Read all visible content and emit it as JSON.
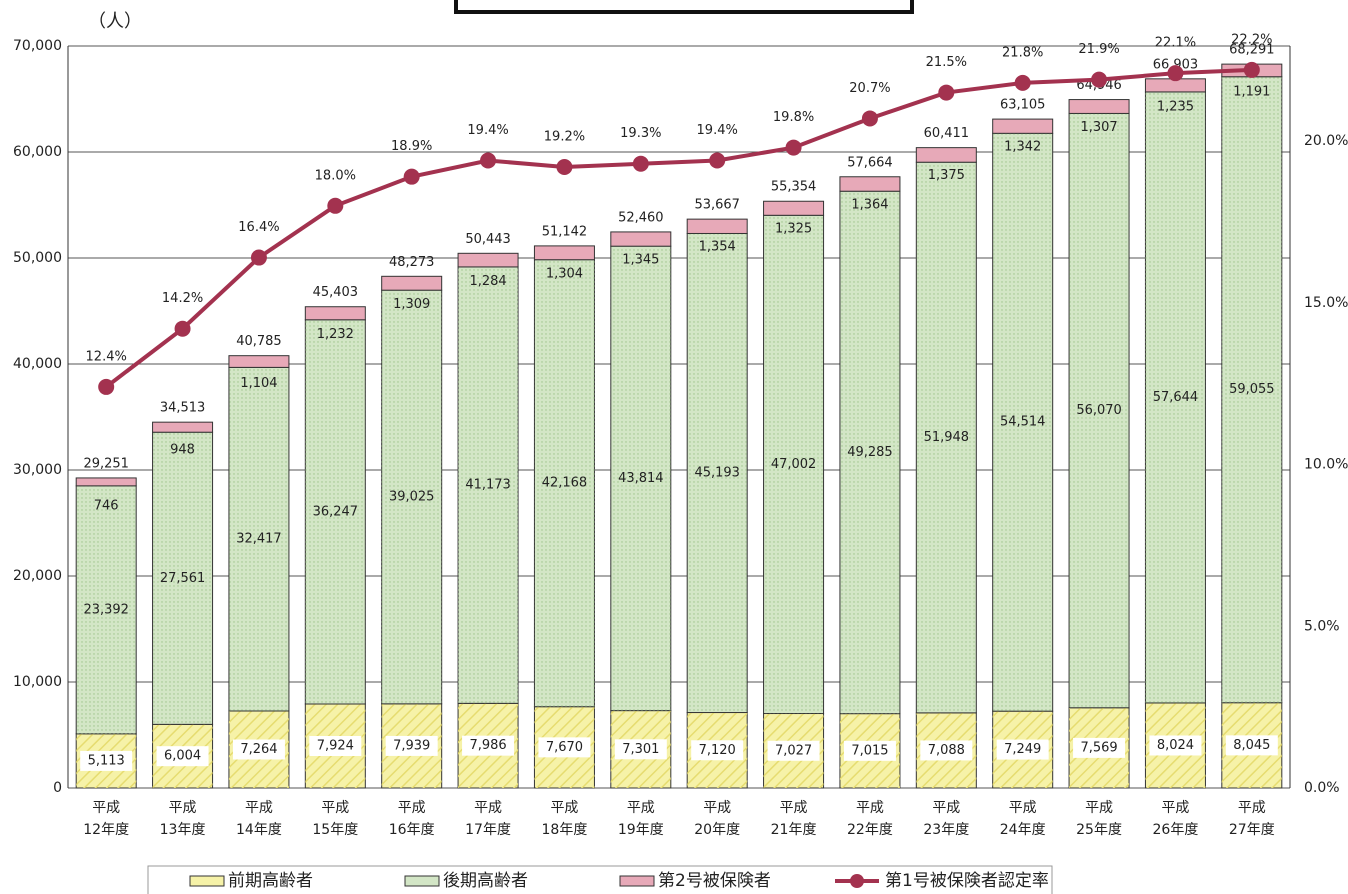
{
  "chart_data": {
    "type": "bar_line",
    "y_label": "（人）",
    "categories": [
      [
        "平成",
        "12年度"
      ],
      [
        "平成",
        "13年度"
      ],
      [
        "平成",
        "14年度"
      ],
      [
        "平成",
        "15年度"
      ],
      [
        "平成",
        "16年度"
      ],
      [
        "平成",
        "17年度"
      ],
      [
        "平成",
        "18年度"
      ],
      [
        "平成",
        "19年度"
      ],
      [
        "平成",
        "20年度"
      ],
      [
        "平成",
        "21年度"
      ],
      [
        "平成",
        "22年度"
      ],
      [
        "平成",
        "23年度"
      ],
      [
        "平成",
        "24年度"
      ],
      [
        "平成",
        "25年度"
      ],
      [
        "平成",
        "26年度"
      ],
      [
        "平成",
        "27年度"
      ]
    ],
    "series": [
      {
        "name": "前期高齢者",
        "color": "#f6f2a8",
        "values": [
          5113,
          6004,
          7264,
          7924,
          7939,
          7986,
          7670,
          7301,
          7120,
          7027,
          7015,
          7088,
          7249,
          7569,
          8024,
          8045
        ],
        "value_labels": [
          "5,113",
          "6,004",
          "7,264",
          "7,924",
          "7,939",
          "7,986",
          "7,670",
          "7,301",
          "7,120",
          "7,027",
          "7,015",
          "7,088",
          "7,249",
          "7,569",
          "8,024",
          "8,045"
        ]
      },
      {
        "name": "後期高齢者",
        "color": "#d3e6c6",
        "values": [
          23392,
          27561,
          32417,
          36247,
          39025,
          41173,
          42168,
          43814,
          45193,
          47002,
          49285,
          51948,
          54514,
          56070,
          57644,
          59055
        ],
        "value_labels": [
          "23,392",
          "27,561",
          "32,417",
          "36,247",
          "39,025",
          "41,173",
          "42,168",
          "43,814",
          "45,193",
          "47,002",
          "49,285",
          "51,948",
          "54,514",
          "56,070",
          "57,644",
          "59,055"
        ]
      },
      {
        "name": "第2号被保険者",
        "color": "#e7a9b8",
        "values": [
          746,
          948,
          1104,
          1232,
          1309,
          1284,
          1304,
          1345,
          1354,
          1325,
          1364,
          1375,
          1342,
          1307,
          1235,
          1191
        ],
        "value_labels": [
          "746",
          "948",
          "1,104",
          "1,232",
          "1,309",
          "1,284",
          "1,304",
          "1,345",
          "1,354",
          "1,325",
          "1,364",
          "1,375",
          "1,342",
          "1,307",
          "1,235",
          "1,191"
        ]
      },
      {
        "name": "第1号被保険者認定率",
        "color": "#a3324f",
        "axis": "y2",
        "values": [
          12.4,
          14.2,
          16.4,
          18.0,
          18.9,
          19.4,
          19.2,
          19.3,
          19.4,
          19.8,
          20.7,
          21.5,
          21.8,
          21.9,
          22.1,
          22.2
        ],
        "value_labels": [
          "12.4%",
          "14.2%",
          "16.4%",
          "18.0%",
          "18.9%",
          "19.4%",
          "19.2%",
          "19.3%",
          "19.4%",
          "19.8%",
          "20.7%",
          "21.5%",
          "21.8%",
          "21.9%",
          "22.1%",
          "22.2%"
        ]
      }
    ],
    "total_labels": [
      "29,251",
      "34,513",
      "40,785",
      "45,403",
      "48,273",
      "50,443",
      "51,142",
      "52,460",
      "53,667",
      "55,354",
      "57,664",
      "60,411",
      "63,105",
      "64,946",
      "66,903",
      "68,291"
    ],
    "ylim": [
      0,
      70000
    ],
    "yticks": [
      0,
      {
        "value": 10000,
        "label": "10,000"
      },
      {
        "value": 20000,
        "label": "20,000"
      },
      {
        "value": 30000,
        "label": "30,000"
      },
      {
        "value": 40000,
        "label": "40,000"
      },
      {
        "value": 50000,
        "label": "50,000"
      },
      {
        "value": 60000,
        "label": "60,000"
      },
      {
        "value": 70000,
        "label": "70,000"
      }
    ],
    "y2lim": [
      0,
      22.94
    ],
    "y2ticks": [
      {
        "value": 0,
        "label": "0.0%"
      },
      {
        "value": 5,
        "label": "5.0%"
      },
      {
        "value": 10,
        "label": "10.0%"
      },
      {
        "value": 15,
        "label": "15.0%"
      },
      {
        "value": 20,
        "label": "20.0%"
      }
    ],
    "grid": true
  }
}
